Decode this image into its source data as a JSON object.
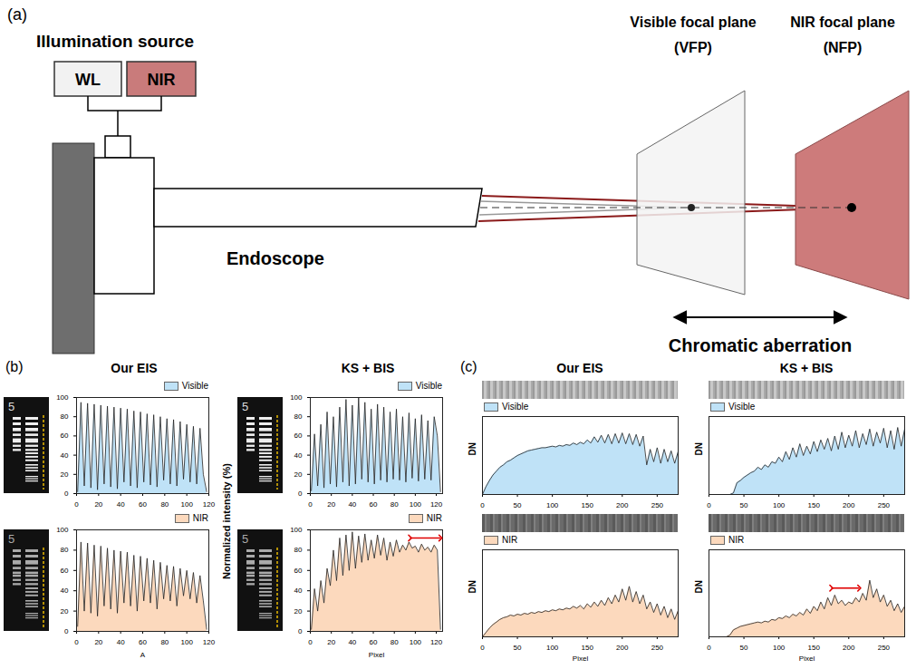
{
  "figure": {
    "a": {
      "label": "(a)",
      "illumination_title": "Illumination source",
      "sources": [
        {
          "name": "WL",
          "color": "#f2f2f2"
        },
        {
          "name": "NIR",
          "color": "#c97b7b"
        }
      ],
      "endoscope": "Endoscope",
      "planes": [
        {
          "name": "Visible focal plane",
          "abbr": "(VFP)",
          "color": "#f3f3f3"
        },
        {
          "name": "NIR focal plane",
          "abbr": "(NFP)",
          "color": "#cd7b7b"
        }
      ],
      "aberration": "Chromatic aberration"
    },
    "b": {
      "label": "(b)",
      "groups": [
        "Our EIS",
        "KS + BIS"
      ],
      "ylabel": "Normalized intensity (%)",
      "target_digit": "5"
    },
    "c": {
      "label": "(c)",
      "groups": [
        "Our EIS",
        "KS + BIS"
      ]
    }
  },
  "chart_data": [
    {
      "type": "area",
      "legend": "top-right",
      "grid": false,
      "x": [
        1,
        4,
        7,
        10,
        13,
        16,
        19,
        22,
        25,
        28,
        31,
        34,
        37,
        40,
        43,
        46,
        49,
        52,
        55,
        58,
        61,
        64,
        67,
        70,
        73,
        76,
        79,
        82,
        85,
        88,
        91,
        94,
        97,
        100,
        103,
        106,
        109,
        112,
        115,
        118
      ],
      "series": [
        {
          "name": "Visible",
          "color": "#bfe2f7",
          "values": [
            2,
            95,
            8,
            94,
            6,
            93,
            4,
            92,
            10,
            91,
            7,
            90,
            5,
            89,
            12,
            88,
            8,
            86,
            6,
            85,
            12,
            83,
            9,
            82,
            7,
            80,
            14,
            78,
            10,
            77,
            8,
            75,
            15,
            72,
            12,
            70,
            10,
            68,
            20,
            2
          ]
        }
      ],
      "xlim": [
        0,
        120
      ],
      "xticks": [
        0,
        20,
        40,
        60,
        80,
        100,
        120
      ],
      "ylim": [
        0,
        100
      ],
      "yticks": [
        0,
        20,
        40,
        60,
        80,
        100
      ]
    },
    {
      "type": "area",
      "legend": "top-right",
      "grid": false,
      "xlabel": "A",
      "x": [
        1,
        4,
        7,
        10,
        13,
        16,
        19,
        22,
        25,
        28,
        31,
        34,
        37,
        40,
        43,
        46,
        49,
        52,
        55,
        58,
        61,
        64,
        67,
        70,
        73,
        76,
        79,
        82,
        85,
        88,
        91,
        94,
        97,
        100,
        103,
        106,
        109,
        112,
        115,
        118
      ],
      "series": [
        {
          "name": "NIR",
          "color": "#fcd9bd",
          "values": [
            5,
            88,
            20,
            87,
            18,
            85,
            15,
            84,
            25,
            82,
            22,
            80,
            18,
            79,
            28,
            78,
            25,
            75,
            20,
            74,
            30,
            72,
            28,
            70,
            22,
            68,
            32,
            65,
            30,
            64,
            25,
            62,
            35,
            60,
            32,
            58,
            28,
            55,
            30,
            2
          ]
        }
      ],
      "xlim": [
        0,
        120
      ],
      "xticks": [
        0,
        20,
        40,
        60,
        80,
        100,
        120
      ],
      "ylim": [
        0,
        100
      ],
      "yticks": [
        0,
        20,
        40,
        60,
        80,
        100
      ]
    },
    {
      "type": "area",
      "legend": "top-right",
      "grid": false,
      "x": [
        1,
        4,
        7,
        10,
        13,
        16,
        19,
        22,
        25,
        28,
        31,
        34,
        37,
        40,
        43,
        46,
        49,
        52,
        55,
        58,
        61,
        64,
        67,
        70,
        73,
        76,
        79,
        82,
        85,
        88,
        91,
        94,
        97,
        100,
        103,
        106,
        109,
        112,
        115,
        118,
        121,
        124
      ],
      "series": [
        {
          "name": "Visible",
          "color": "#bfe2f7",
          "values": [
            3,
            62,
            8,
            72,
            6,
            85,
            10,
            80,
            7,
            90,
            12,
            98,
            8,
            92,
            10,
            100,
            15,
            95,
            12,
            88,
            10,
            93,
            14,
            90,
            12,
            85,
            15,
            88,
            14,
            80,
            12,
            84,
            16,
            78,
            13,
            82,
            15,
            76,
            14,
            80,
            60,
            2
          ]
        }
      ],
      "xlim": [
        0,
        126
      ],
      "xticks": [
        0,
        20,
        40,
        60,
        80,
        100,
        120
      ],
      "ylim": [
        0,
        100
      ],
      "yticks": [
        0,
        20,
        40,
        60,
        80,
        100
      ]
    },
    {
      "type": "area",
      "legend": "top-right",
      "grid": false,
      "xlabel": "Pixel",
      "x": [
        1,
        4,
        7,
        10,
        13,
        16,
        19,
        22,
        25,
        28,
        31,
        34,
        37,
        40,
        43,
        46,
        49,
        52,
        55,
        58,
        61,
        64,
        67,
        70,
        73,
        76,
        79,
        82,
        85,
        88,
        91,
        94,
        97,
        100,
        103,
        106,
        109,
        112,
        115,
        118,
        121,
        124
      ],
      "series": [
        {
          "name": "NIR",
          "color": "#fcd9bd",
          "values": [
            2,
            42,
            20,
            50,
            28,
            62,
            45,
            80,
            50,
            92,
            55,
            95,
            60,
            98,
            62,
            94,
            68,
            96,
            70,
            90,
            72,
            95,
            75,
            92,
            70,
            88,
            74,
            90,
            78,
            85,
            80,
            88,
            82,
            84,
            78,
            86,
            80,
            83,
            78,
            85,
            80,
            2
          ]
        }
      ],
      "xlim": [
        0,
        126
      ],
      "xticks": [
        0,
        20,
        40,
        60,
        80,
        100,
        120
      ],
      "ylim": [
        0,
        100
      ],
      "yticks": [
        0,
        20,
        40,
        60,
        80,
        100
      ],
      "highlight": {
        "x": [
          95,
          124
        ],
        "y": 92,
        "color": "#e00000"
      }
    },
    {
      "type": "area",
      "legend": "top-left",
      "grid": false,
      "tick_labels": "x",
      "ylabel": "DN",
      "x": [
        0,
        5,
        10,
        15,
        20,
        25,
        30,
        35,
        40,
        45,
        50,
        55,
        60,
        65,
        70,
        75,
        80,
        85,
        90,
        95,
        100,
        105,
        110,
        115,
        120,
        125,
        130,
        135,
        140,
        145,
        150,
        155,
        160,
        165,
        170,
        175,
        180,
        185,
        190,
        195,
        200,
        205,
        210,
        215,
        220,
        225,
        230,
        235,
        240,
        245,
        250,
        255,
        260,
        265,
        270,
        275,
        280
      ],
      "series": [
        {
          "name": "Visible",
          "color": "#bfe2f7",
          "values": [
            0,
            10,
            18,
            25,
            30,
            35,
            38,
            42,
            44,
            47,
            50,
            52,
            54,
            56,
            57,
            58,
            59,
            60,
            60,
            61,
            62,
            61,
            63,
            62,
            64,
            63,
            66,
            64,
            67,
            65,
            70,
            66,
            74,
            67,
            76,
            66,
            77,
            65,
            78,
            66,
            79,
            65,
            78,
            64,
            77,
            62,
            75,
            38,
            58,
            42,
            60,
            40,
            58,
            42,
            56,
            40,
            55
          ]
        }
      ],
      "xlim": [
        0,
        280
      ],
      "xticks": [
        0,
        50,
        100,
        150,
        200,
        250
      ],
      "ylim": [
        0,
        100
      ]
    },
    {
      "type": "area",
      "legend": "top-left",
      "grid": false,
      "tick_labels": "x",
      "ylabel": "DN",
      "xlabel": "Pixel",
      "x": [
        0,
        5,
        10,
        15,
        20,
        25,
        30,
        35,
        40,
        45,
        50,
        55,
        60,
        65,
        70,
        75,
        80,
        85,
        90,
        95,
        100,
        105,
        110,
        115,
        120,
        125,
        130,
        135,
        140,
        145,
        150,
        155,
        160,
        165,
        170,
        175,
        180,
        185,
        190,
        195,
        200,
        205,
        210,
        215,
        220,
        225,
        230,
        235,
        240,
        245,
        250,
        255,
        260,
        265,
        270,
        275,
        280
      ],
      "series": [
        {
          "name": "NIR",
          "color": "#fcd9bd",
          "values": [
            0,
            5,
            10,
            14,
            17,
            20,
            22,
            23,
            25,
            24,
            26,
            25,
            27,
            26,
            28,
            27,
            29,
            28,
            30,
            29,
            31,
            30,
            32,
            31,
            33,
            32,
            35,
            33,
            36,
            32,
            38,
            34,
            40,
            35,
            42,
            36,
            45,
            38,
            48,
            40,
            55,
            42,
            58,
            40,
            52,
            38,
            48,
            32,
            40,
            28,
            38,
            25,
            35,
            22,
            32,
            20,
            30
          ]
        }
      ],
      "xlim": [
        0,
        280
      ],
      "xticks": [
        0,
        50,
        100,
        150,
        200,
        250
      ],
      "ylim": [
        0,
        100
      ]
    },
    {
      "type": "area",
      "legend": "top-left",
      "grid": false,
      "tick_labels": "x",
      "ylabel": "DN",
      "x": [
        0,
        5,
        10,
        15,
        20,
        25,
        30,
        35,
        40,
        45,
        50,
        55,
        60,
        65,
        70,
        75,
        80,
        85,
        90,
        95,
        100,
        105,
        110,
        115,
        120,
        125,
        130,
        135,
        140,
        145,
        150,
        155,
        160,
        165,
        170,
        175,
        180,
        185,
        190,
        195,
        200,
        205,
        210,
        215,
        220,
        225,
        230,
        235,
        240,
        245,
        250,
        255,
        260,
        265,
        270,
        275,
        280
      ],
      "series": [
        {
          "name": "Visible",
          "color": "#bfe2f7",
          "values": [
            0,
            0,
            0,
            0,
            0,
            0,
            0,
            2,
            15,
            18,
            22,
            25,
            28,
            30,
            35,
            32,
            38,
            35,
            42,
            40,
            48,
            42,
            55,
            45,
            60,
            48,
            65,
            50,
            62,
            52,
            68,
            55,
            70,
            58,
            72,
            56,
            75,
            58,
            80,
            60,
            76,
            62,
            82,
            60,
            78,
            64,
            84,
            62,
            80,
            66,
            85,
            60,
            82,
            58,
            86,
            62,
            84
          ]
        }
      ],
      "xlim": [
        0,
        280
      ],
      "xticks": [
        0,
        50,
        100,
        150,
        200,
        250
      ],
      "ylim": [
        0,
        100
      ]
    },
    {
      "type": "area",
      "legend": "top-left",
      "grid": false,
      "tick_labels": "x",
      "ylabel": "DN",
      "xlabel": "Pixel",
      "x": [
        0,
        5,
        10,
        15,
        20,
        25,
        30,
        35,
        40,
        45,
        50,
        55,
        60,
        65,
        70,
        75,
        80,
        85,
        90,
        95,
        100,
        105,
        110,
        115,
        120,
        125,
        130,
        135,
        140,
        145,
        150,
        155,
        160,
        165,
        170,
        175,
        180,
        185,
        190,
        195,
        200,
        205,
        210,
        215,
        220,
        225,
        230,
        235,
        240,
        245,
        250,
        255,
        260,
        265,
        270,
        275,
        280
      ],
      "series": [
        {
          "name": "NIR",
          "color": "#fcd9bd",
          "values": [
            0,
            0,
            0,
            0,
            0,
            0,
            2,
            8,
            10,
            12,
            13,
            14,
            15,
            16,
            17,
            16,
            18,
            17,
            20,
            19,
            22,
            21,
            24,
            22,
            26,
            24,
            28,
            25,
            32,
            27,
            35,
            30,
            40,
            32,
            45,
            36,
            48,
            38,
            42,
            36,
            40,
            38,
            45,
            40,
            50,
            42,
            65,
            45,
            55,
            40,
            48,
            35,
            42,
            30,
            38,
            28,
            35
          ]
        }
      ],
      "xlim": [
        0,
        280
      ],
      "xticks": [
        0,
        50,
        100,
        150,
        200,
        250
      ],
      "ylim": [
        0,
        100
      ],
      "highlight": {
        "x": [
          175,
          215
        ],
        "y": 56,
        "color": "#e00000"
      }
    }
  ]
}
